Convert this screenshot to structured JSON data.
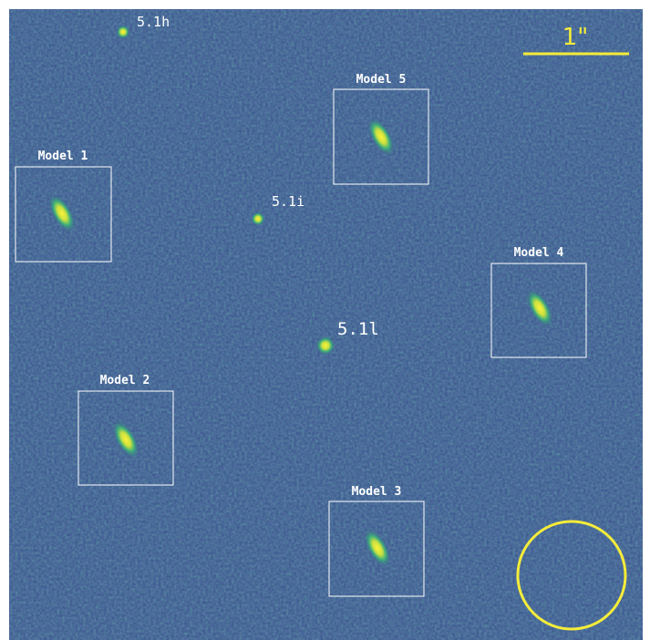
{
  "image": {
    "scale_bar_label": "1\"",
    "sources": [
      {
        "label": "5.1h"
      },
      {
        "label": "5.1i"
      },
      {
        "label": "5.1l"
      }
    ],
    "models": [
      {
        "label": "Model 1"
      },
      {
        "label": "Model 2"
      },
      {
        "label": "Model 3"
      },
      {
        "label": "Model 4"
      },
      {
        "label": "Model 5"
      }
    ]
  }
}
